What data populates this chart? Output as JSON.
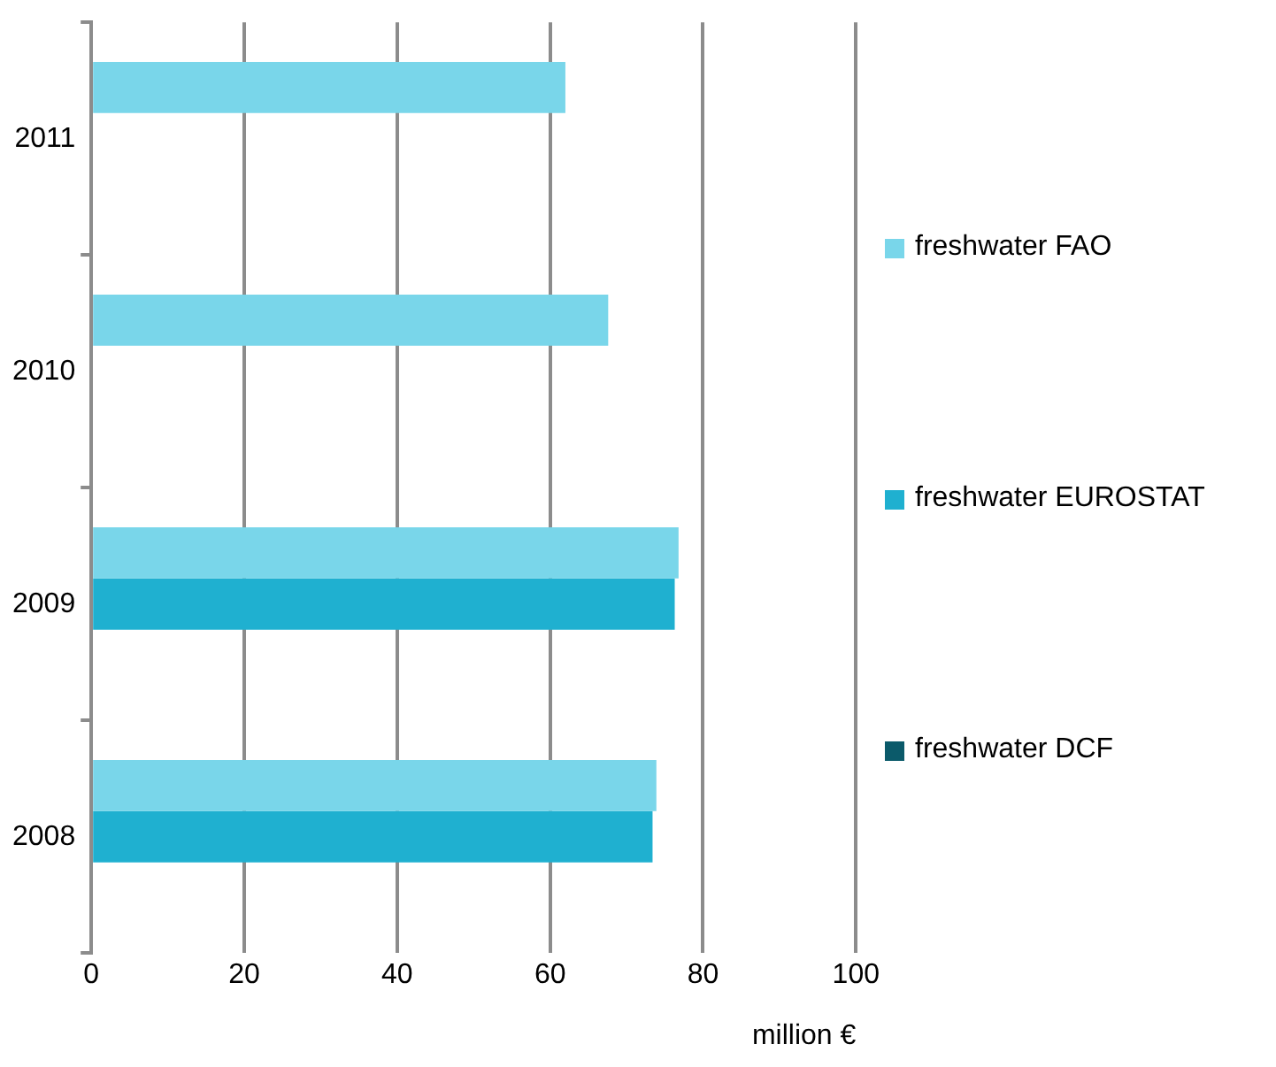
{
  "chart_data": {
    "type": "bar",
    "orientation": "horizontal",
    "xlabel": "million €",
    "categories": [
      "2011",
      "2010",
      "2009",
      "2008"
    ],
    "series": [
      {
        "name": "freshwater FAO",
        "color": "#79d6ea",
        "values": [
          62,
          67.6,
          76.8,
          73.9
        ]
      },
      {
        "name": "freshwater EUROSTAT",
        "color": "#1fb0d0",
        "values": [
          null,
          null,
          76.3,
          73.4
        ]
      },
      {
        "name": "freshwater DCF",
        "color": "#0b5a6a",
        "values": [
          null,
          null,
          null,
          null
        ]
      }
    ],
    "xlim": [
      0,
      100
    ],
    "xticks": [
      0,
      20,
      40,
      60,
      80,
      100
    ],
    "grid": "x",
    "legend": "right"
  }
}
